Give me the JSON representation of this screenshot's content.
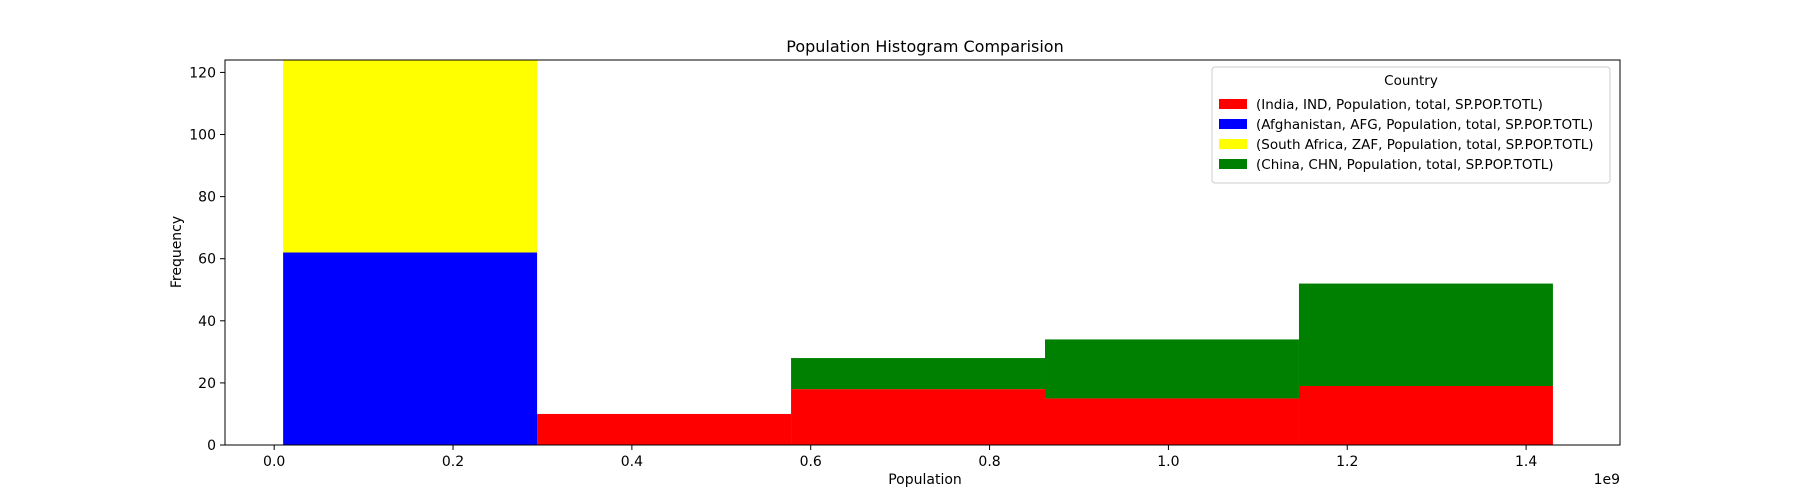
{
  "chart_data": {
    "type": "bar",
    "title": "Population Histogram Comparision",
    "xlabel": "Population",
    "ylabel": "Frequency",
    "x_offset_label": "1e9",
    "xlim": [
      -0.055,
      1.505
    ],
    "ylim": [
      0,
      124
    ],
    "x_ticks": [
      0.0,
      0.2,
      0.4,
      0.6,
      0.8,
      1.0,
      1.2,
      1.4
    ],
    "x_tick_labels": [
      "0.0",
      "0.2",
      "0.4",
      "0.6",
      "0.8",
      "1.0",
      "1.2",
      "1.4"
    ],
    "y_ticks": [
      0,
      20,
      40,
      60,
      80,
      100,
      120
    ],
    "y_tick_labels": [
      "0",
      "20",
      "40",
      "60",
      "80",
      "100",
      "120"
    ],
    "bin_edges": [
      0.01,
      0.294,
      0.578,
      0.862,
      1.146,
      1.43
    ],
    "stacked": true,
    "grid": false,
    "legend_position": "top-right",
    "legend_title": "Country",
    "series": [
      {
        "name": "(India, IND, Population, total, SP.POP.TOTL)",
        "color": "#ff0000",
        "values": [
          0,
          10,
          18,
          15,
          19
        ]
      },
      {
        "name": "(Afghanistan, AFG, Population, total, SP.POP.TOTL)",
        "color": "#0000ff",
        "values": [
          62,
          0,
          0,
          0,
          0
        ]
      },
      {
        "name": "(South Africa, ZAF, Population, total, SP.POP.TOTL)",
        "color": "#ffff00",
        "values": [
          62,
          0,
          0,
          0,
          0
        ]
      },
      {
        "name": "(China, CHN, Population, total, SP.POP.TOTL)",
        "color": "#008000",
        "values": [
          0,
          0,
          10,
          19,
          33
        ]
      }
    ]
  }
}
